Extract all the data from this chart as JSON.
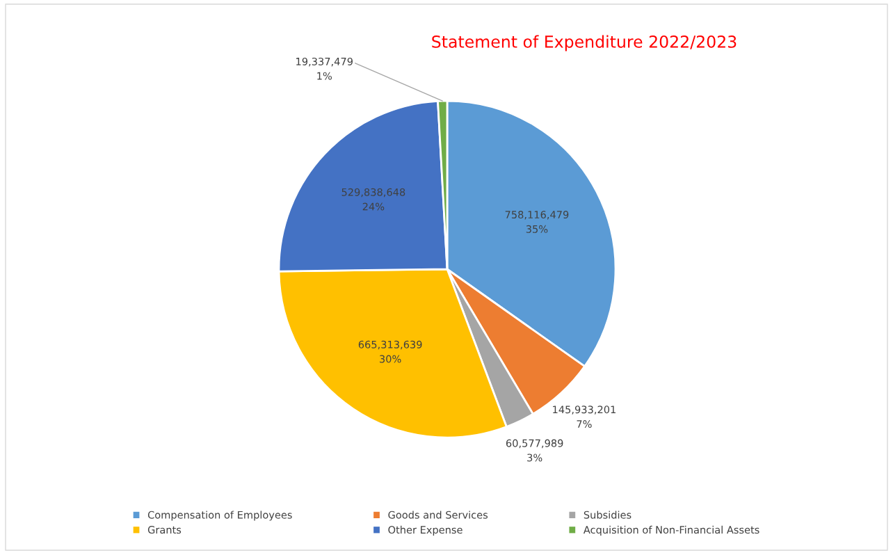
{
  "chart_data": {
    "type": "pie",
    "title": "Statement of Expenditure 2022/2023",
    "categories": [
      "Compensation of Employees",
      "Goods and Services",
      "Subsidies",
      "Grants",
      "Other Expense",
      "Acquisition of Non-Financial Assets"
    ],
    "values": [
      758116479,
      145933201,
      60577989,
      665313639,
      529838648,
      19337479
    ],
    "value_labels": [
      "758,116,479\n35%",
      "145,933,201\n7%",
      "60,577,989\n3%",
      "665,313,639\n30%",
      "529,838,648\n24%",
      "19,337,479\n1%"
    ],
    "colors": [
      "#5b9bd5",
      "#ed7d31",
      "#a5a5a5",
      "#ffc000",
      "#4472c4",
      "#70ad47"
    ],
    "legend": "bottom"
  }
}
